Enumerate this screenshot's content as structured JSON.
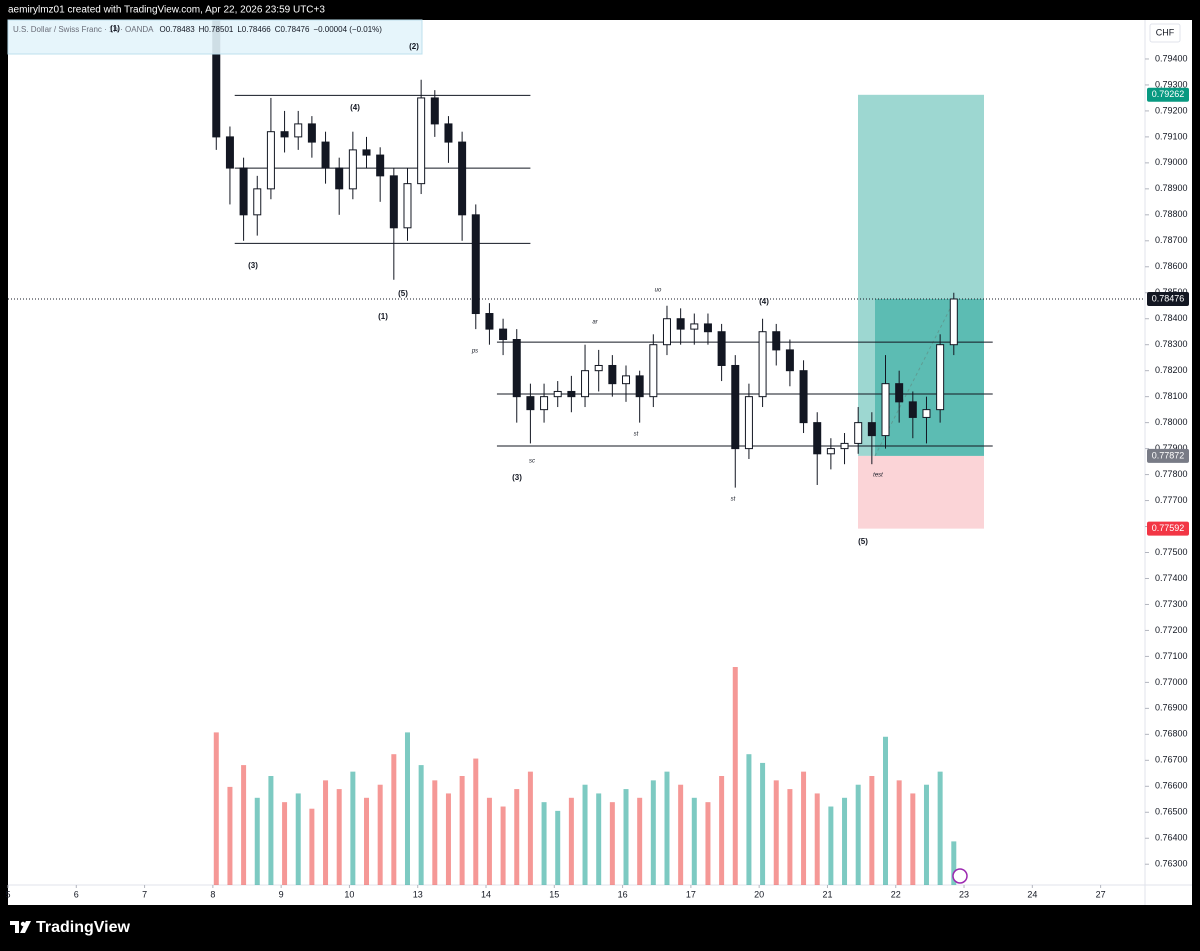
{
  "header": {
    "creator": "aemirylmz01 created with TradingView.com, Apr 22, 2026 23:59 UTC+3"
  },
  "chart_data": {
    "type": "candlestick",
    "symbol": "U.S. Dollar / Swiss Franc · 1h · OANDA",
    "readout": [
      {
        "key": "O",
        "value": 0.78483
      },
      {
        "key": "H",
        "value": 0.78501
      },
      {
        "key": "L",
        "value": 0.78466
      },
      {
        "key": "C",
        "value": 0.78476
      }
    ],
    "change": "−0.00004 (−0.01%)",
    "currency": "CHF",
    "candle_color": "#131722",
    "up_color": "#26a69a",
    "down_color": "#ef5350",
    "x": [
      3.05,
      3.25,
      3.45,
      3.65,
      3.85,
      4.05,
      4.25,
      4.45,
      4.65,
      4.85,
      5.05,
      5.25,
      5.45,
      5.65,
      5.85,
      6.05,
      6.25,
      6.45,
      6.65,
      6.85,
      7.05,
      7.25,
      7.45,
      7.65,
      7.85,
      8.05,
      8.25,
      8.45,
      8.65,
      8.85,
      9.05,
      9.25,
      9.45,
      9.65,
      9.85,
      10.05,
      10.25,
      10.45,
      10.65,
      10.85,
      11.05,
      11.25,
      11.45,
      11.65,
      11.85,
      12.05,
      12.25,
      12.45,
      12.65,
      12.85,
      13.05,
      13.25,
      13.45,
      13.65,
      13.85
    ],
    "ohlc": [
      [
        0.7955,
        0.7955,
        0.7905,
        0.791
      ],
      [
        0.791,
        0.7914,
        0.7884,
        0.7898
      ],
      [
        0.7898,
        0.7902,
        0.787,
        0.788
      ],
      [
        0.788,
        0.7895,
        0.7872,
        0.789
      ],
      [
        0.789,
        0.7925,
        0.7886,
        0.7912
      ],
      [
        0.7912,
        0.792,
        0.7904,
        0.791
      ],
      [
        0.791,
        0.792,
        0.7905,
        0.7915
      ],
      [
        0.7915,
        0.7918,
        0.7902,
        0.7908
      ],
      [
        0.7908,
        0.7912,
        0.7892,
        0.7898
      ],
      [
        0.7898,
        0.7902,
        0.788,
        0.789
      ],
      [
        0.789,
        0.7912,
        0.7886,
        0.7905
      ],
      [
        0.7905,
        0.791,
        0.7898,
        0.7903
      ],
      [
        0.7903,
        0.7906,
        0.7885,
        0.7895
      ],
      [
        0.7895,
        0.7898,
        0.7855,
        0.7875
      ],
      [
        0.7875,
        0.7898,
        0.787,
        0.7892
      ],
      [
        0.7892,
        0.7932,
        0.7888,
        0.7925
      ],
      [
        0.7925,
        0.7928,
        0.791,
        0.7915
      ],
      [
        0.7915,
        0.7918,
        0.79,
        0.7908
      ],
      [
        0.7908,
        0.7912,
        0.787,
        0.788
      ],
      [
        0.788,
        0.7884,
        0.7836,
        0.7842
      ],
      [
        0.7842,
        0.7846,
        0.783,
        0.7836
      ],
      [
        0.7836,
        0.784,
        0.7826,
        0.7832
      ],
      [
        0.7832,
        0.7836,
        0.78,
        0.781
      ],
      [
        0.781,
        0.7815,
        0.7792,
        0.7805
      ],
      [
        0.7805,
        0.7815,
        0.78,
        0.781
      ],
      [
        0.781,
        0.7816,
        0.7806,
        0.7812
      ],
      [
        0.7812,
        0.7818,
        0.7804,
        0.781
      ],
      [
        0.781,
        0.783,
        0.7806,
        0.782
      ],
      [
        0.782,
        0.7828,
        0.7812,
        0.7822
      ],
      [
        0.7822,
        0.7826,
        0.781,
        0.7815
      ],
      [
        0.7815,
        0.7822,
        0.7808,
        0.7818
      ],
      [
        0.7818,
        0.782,
        0.78,
        0.781
      ],
      [
        0.781,
        0.7834,
        0.7806,
        0.783
      ],
      [
        0.783,
        0.7845,
        0.7826,
        0.784
      ],
      [
        0.784,
        0.7844,
        0.783,
        0.7836
      ],
      [
        0.7836,
        0.7842,
        0.783,
        0.7838
      ],
      [
        0.7838,
        0.7842,
        0.783,
        0.7835
      ],
      [
        0.7835,
        0.7838,
        0.7816,
        0.7822
      ],
      [
        0.7822,
        0.7826,
        0.7775,
        0.779
      ],
      [
        0.779,
        0.7815,
        0.7786,
        0.781
      ],
      [
        0.781,
        0.784,
        0.7806,
        0.7835
      ],
      [
        0.7835,
        0.7838,
        0.7822,
        0.7828
      ],
      [
        0.7828,
        0.7832,
        0.7814,
        0.782
      ],
      [
        0.782,
        0.7824,
        0.7796,
        0.78
      ],
      [
        0.78,
        0.7804,
        0.7776,
        0.7788
      ],
      [
        0.7788,
        0.7794,
        0.7782,
        0.779
      ],
      [
        0.779,
        0.7796,
        0.7784,
        0.7792
      ],
      [
        0.7792,
        0.7806,
        0.7788,
        0.78
      ],
      [
        0.78,
        0.7804,
        0.7784,
        0.7795
      ],
      [
        0.7795,
        0.7826,
        0.779,
        0.7815
      ],
      [
        0.7815,
        0.782,
        0.78,
        0.7808
      ],
      [
        0.7808,
        0.7812,
        0.7794,
        0.7802
      ],
      [
        0.7802,
        0.781,
        0.7792,
        0.7805
      ],
      [
        0.7805,
        0.7834,
        0.78,
        0.783
      ],
      [
        0.783,
        0.785,
        0.7826,
        0.78476
      ]
    ],
    "volume": [
      70,
      45,
      55,
      40,
      50,
      38,
      42,
      35,
      48,
      44,
      52,
      40,
      46,
      60,
      70,
      55,
      48,
      42,
      50,
      58,
      40,
      36,
      44,
      52,
      38,
      34,
      40,
      46,
      42,
      38,
      44,
      40,
      48,
      52,
      46,
      40,
      38,
      50,
      100,
      60,
      56,
      48,
      44,
      52,
      42,
      36,
      40,
      46,
      50,
      68,
      48,
      42,
      46,
      52,
      20
    ],
    "xlim": [
      0,
      16.65
    ],
    "xticks": [
      {
        "value": 0,
        "label": "5"
      },
      {
        "value": 1,
        "label": "6"
      },
      {
        "value": 2,
        "label": "7"
      },
      {
        "value": 3,
        "label": "8"
      },
      {
        "value": 4,
        "label": "9"
      },
      {
        "value": 5,
        "label": "10"
      },
      {
        "value": 6,
        "label": "13"
      },
      {
        "value": 7,
        "label": "14"
      },
      {
        "value": 8,
        "label": "15"
      },
      {
        "value": 9,
        "label": "16"
      },
      {
        "value": 10,
        "label": "17"
      },
      {
        "value": 11,
        "label": "20"
      },
      {
        "value": 12,
        "label": "21"
      },
      {
        "value": 13,
        "label": "22"
      },
      {
        "value": 14,
        "label": "23"
      },
      {
        "value": 15,
        "label": "24"
      },
      {
        "value": 16,
        "label": "27"
      }
    ],
    "ylim": [
      0.7622,
      0.7955
    ],
    "yticks": [
      {
        "value": 0.763,
        "label": "0.76300"
      },
      {
        "value": 0.764,
        "label": "0.76400"
      },
      {
        "value": 0.765,
        "label": "0.76500"
      },
      {
        "value": 0.766,
        "label": "0.76600"
      },
      {
        "value": 0.767,
        "label": "0.76700"
      },
      {
        "value": 0.768,
        "label": "0.76800"
      },
      {
        "value": 0.769,
        "label": "0.76900"
      },
      {
        "value": 0.77,
        "label": "0.77000"
      },
      {
        "value": 0.771,
        "label": "0.77100"
      },
      {
        "value": 0.772,
        "label": "0.77200"
      },
      {
        "value": 0.773,
        "label": "0.77300"
      },
      {
        "value": 0.774,
        "label": "0.77400"
      },
      {
        "value": 0.775,
        "label": "0.77500"
      },
      {
        "value": 0.776,
        "label": "0.77600"
      },
      {
        "value": 0.777,
        "label": "0.77700"
      },
      {
        "value": 0.778,
        "label": "0.77800"
      },
      {
        "value": 0.779,
        "label": "0.77900"
      },
      {
        "value": 0.78,
        "label": "0.78000"
      },
      {
        "value": 0.781,
        "label": "0.78100"
      },
      {
        "value": 0.782,
        "label": "0.78200"
      },
      {
        "value": 0.783,
        "label": "0.78300"
      },
      {
        "value": 0.784,
        "label": "0.78400"
      },
      {
        "value": 0.785,
        "label": "0.78500"
      },
      {
        "value": 0.786,
        "label": "0.78600"
      },
      {
        "value": 0.787,
        "label": "0.78700"
      },
      {
        "value": 0.788,
        "label": "0.78800"
      },
      {
        "value": 0.789,
        "label": "0.78900"
      },
      {
        "value": 0.79,
        "label": "0.79000"
      },
      {
        "value": 0.791,
        "label": "0.79100"
      },
      {
        "value": 0.792,
        "label": "0.79200"
      },
      {
        "value": 0.793,
        "label": "0.79300"
      },
      {
        "value": 0.794,
        "label": "0.79400"
      }
    ],
    "last_price": 0.78476,
    "position": {
      "target": 0.79262,
      "entry": 0.77872,
      "stop": 0.77592
    },
    "ranges": [
      {
        "prices": [
          0.7926,
          0.7898,
          0.7869
        ],
        "x": [
          3.32,
          7.65
        ]
      },
      {
        "prices": [
          0.7831,
          0.7811,
          0.7791
        ],
        "x": [
          7.16,
          14.42
        ]
      }
    ],
    "annotations": [
      "(1)",
      "(2)",
      "(4)",
      "(3)",
      "(5)",
      "(1)",
      "ps",
      "ar",
      "uo",
      "(4)",
      "st",
      "sc",
      "(3)",
      "st",
      "test",
      "(5)"
    ]
  },
  "footer": {
    "brand": "TradingView"
  }
}
